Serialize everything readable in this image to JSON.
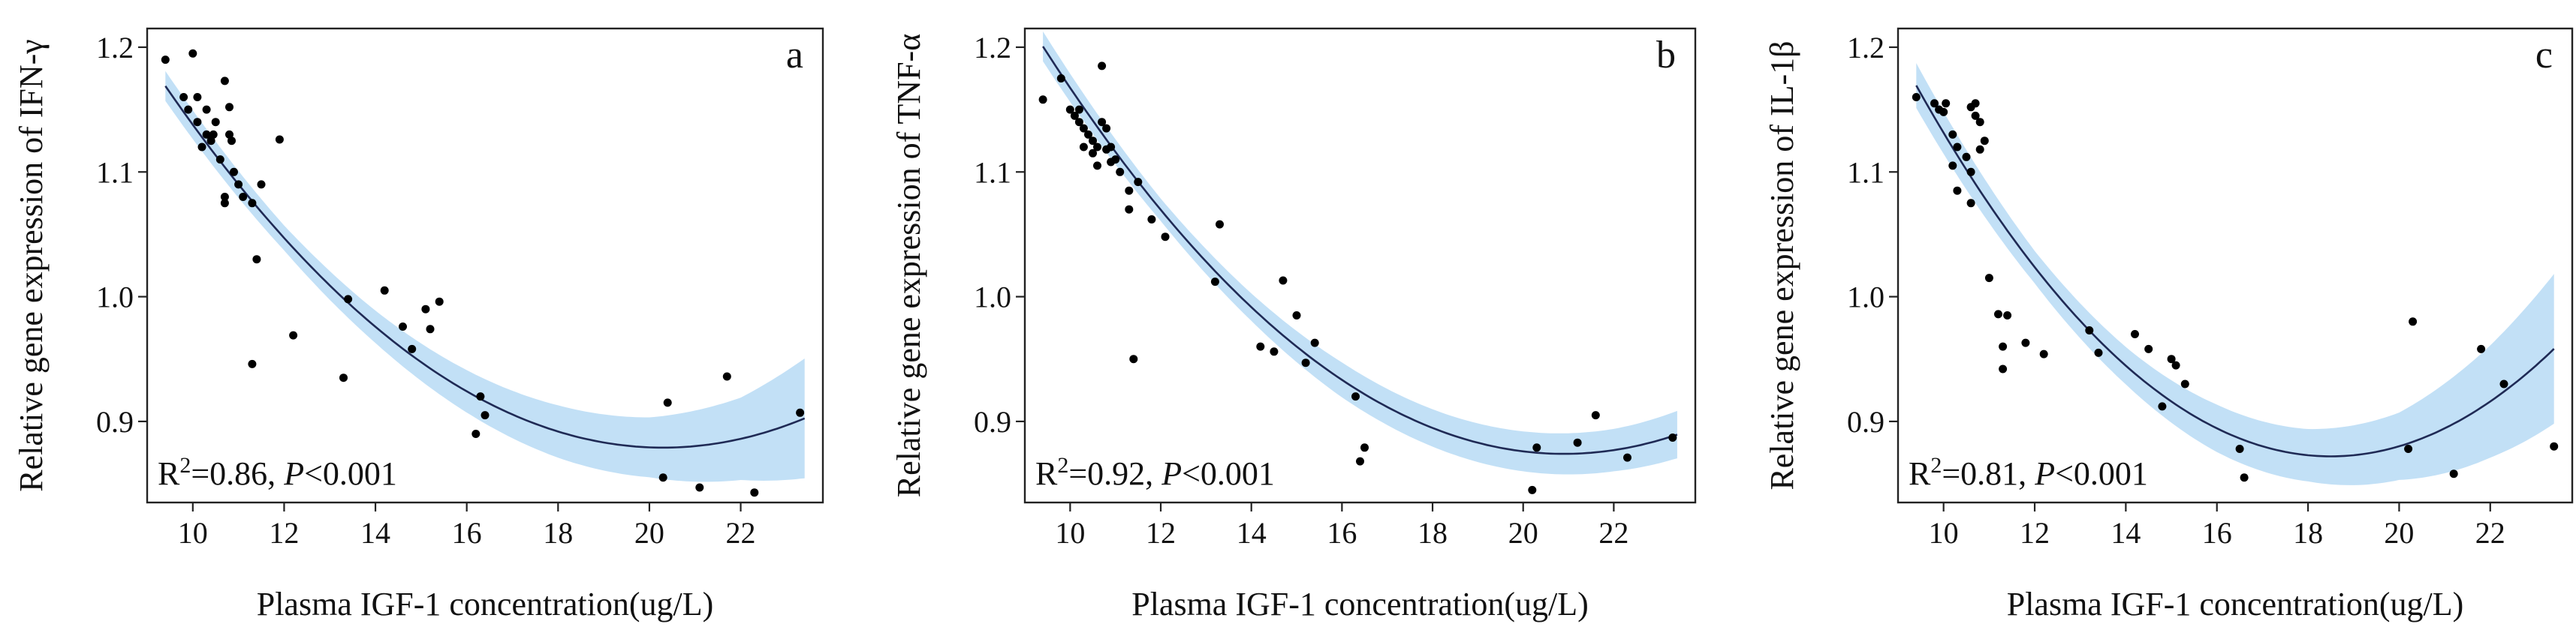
{
  "colors": {
    "band": "#b7dbf5",
    "line": "#1f2a55",
    "point": "#000000"
  },
  "chart_data": [
    {
      "type": "scatter",
      "panel_label": "a",
      "xlabel": "Plasma IGF-1 concentration(ug/L)",
      "ylabel": "Relative gene expression of IFN-γ",
      "xlim": [
        9,
        23.8
      ],
      "ylim": [
        0.835,
        1.215
      ],
      "xticks": [
        10,
        12,
        14,
        16,
        18,
        20,
        22
      ],
      "yticks": [
        0.9,
        1.0,
        1.1,
        1.2
      ],
      "xtick_labels": [
        "10",
        "12",
        "14",
        "16",
        "18",
        "20",
        "22"
      ],
      "ytick_labels": [
        "0.9",
        "1.0",
        "1.1",
        "1.2"
      ],
      "stat": {
        "r_prefix": "R",
        "r_sup": "2",
        "r_value": "=0.86, ",
        "p_italic": "P",
        "p_value": "<0.001"
      },
      "fit_quadratic": {
        "vertex_x": 20.3,
        "vertex_y": 0.879,
        "a": 0.00244
      },
      "band_halfwidth": [
        [
          9.4,
          0.012
        ],
        [
          12,
          0.01
        ],
        [
          14,
          0.013
        ],
        [
          16,
          0.017
        ],
        [
          18,
          0.021
        ],
        [
          20,
          0.024
        ],
        [
          22,
          0.033
        ],
        [
          23.4,
          0.048
        ]
      ],
      "fit_range": [
        9.4,
        23.4
      ],
      "points": [
        [
          9.4,
          1.19
        ],
        [
          9.8,
          1.16
        ],
        [
          10.0,
          1.195
        ],
        [
          9.9,
          1.15
        ],
        [
          10.1,
          1.16
        ],
        [
          10.1,
          1.14
        ],
        [
          10.2,
          1.12
        ],
        [
          10.3,
          1.15
        ],
        [
          10.3,
          1.13
        ],
        [
          10.4,
          1.125
        ],
        [
          10.45,
          1.13
        ],
        [
          10.5,
          1.14
        ],
        [
          10.6,
          1.11
        ],
        [
          10.7,
          1.173
        ],
        [
          10.8,
          1.152
        ],
        [
          10.8,
          1.13
        ],
        [
          10.85,
          1.125
        ],
        [
          10.7,
          1.08
        ],
        [
          10.7,
          1.075
        ],
        [
          10.9,
          1.1
        ],
        [
          11.0,
          1.09
        ],
        [
          11.1,
          1.08
        ],
        [
          11.3,
          1.075
        ],
        [
          11.5,
          1.09
        ],
        [
          11.9,
          1.126
        ],
        [
          11.4,
          1.03
        ],
        [
          11.3,
          0.946
        ],
        [
          12.2,
          0.969
        ],
        [
          13.4,
          0.998
        ],
        [
          13.3,
          0.935
        ],
        [
          14.2,
          1.005
        ],
        [
          14.6,
          0.976
        ],
        [
          14.8,
          0.958
        ],
        [
          15.1,
          0.99
        ],
        [
          15.2,
          0.974
        ],
        [
          15.4,
          0.996
        ],
        [
          16.3,
          0.92
        ],
        [
          16.4,
          0.905
        ],
        [
          16.2,
          0.89
        ],
        [
          20.4,
          0.915
        ],
        [
          20.3,
          0.855
        ],
        [
          21.1,
          0.847
        ],
        [
          21.7,
          0.936
        ],
        [
          22.3,
          0.843
        ],
        [
          23.3,
          0.907
        ]
      ]
    },
    {
      "type": "scatter",
      "panel_label": "b",
      "xlabel": "Plasma IGF-1 concentration(ug/L)",
      "ylabel": "Relative gene expression of TNF-α",
      "xlim": [
        9,
        23.8
      ],
      "ylim": [
        0.835,
        1.215
      ],
      "xticks": [
        10,
        12,
        14,
        16,
        18,
        20,
        22
      ],
      "yticks": [
        0.9,
        1.0,
        1.1,
        1.2
      ],
      "xtick_labels": [
        "10",
        "12",
        "14",
        "16",
        "18",
        "20",
        "22"
      ],
      "ytick_labels": [
        "0.9",
        "1.0",
        "1.1",
        "1.2"
      ],
      "stat": {
        "r_prefix": "R",
        "r_sup": "2",
        "r_value": "=0.92, ",
        "p_italic": "P",
        "p_value": "<0.001"
      },
      "fit_quadratic": {
        "vertex_x": 20.9,
        "vertex_y": 0.874,
        "a": 0.00247
      },
      "band_halfwidth": [
        [
          9.4,
          0.012
        ],
        [
          12,
          0.009
        ],
        [
          14,
          0.011
        ],
        [
          16,
          0.014
        ],
        [
          18,
          0.015
        ],
        [
          20,
          0.016
        ],
        [
          22,
          0.017
        ],
        [
          23.4,
          0.019
        ]
      ],
      "fit_range": [
        9.4,
        23.4
      ],
      "points": [
        [
          9.4,
          1.158
        ],
        [
          9.8,
          1.175
        ],
        [
          10.0,
          1.15
        ],
        [
          10.1,
          1.145
        ],
        [
          10.2,
          1.15
        ],
        [
          10.2,
          1.14
        ],
        [
          10.3,
          1.135
        ],
        [
          10.3,
          1.12
        ],
        [
          10.4,
          1.13
        ],
        [
          10.5,
          1.125
        ],
        [
          10.5,
          1.115
        ],
        [
          10.6,
          1.12
        ],
        [
          10.6,
          1.105
        ],
        [
          10.7,
          1.185
        ],
        [
          10.7,
          1.14
        ],
        [
          10.8,
          1.135
        ],
        [
          10.8,
          1.118
        ],
        [
          10.9,
          1.12
        ],
        [
          10.9,
          1.108
        ],
        [
          11.0,
          1.11
        ],
        [
          11.1,
          1.1
        ],
        [
          11.3,
          1.085
        ],
        [
          11.3,
          1.07
        ],
        [
          11.5,
          1.092
        ],
        [
          11.4,
          0.95
        ],
        [
          11.8,
          1.062
        ],
        [
          12.1,
          1.048
        ],
        [
          13.2,
          1.012
        ],
        [
          13.3,
          1.058
        ],
        [
          14.2,
          0.96
        ],
        [
          14.5,
          0.956
        ],
        [
          14.7,
          1.013
        ],
        [
          15.0,
          0.985
        ],
        [
          15.2,
          0.947
        ],
        [
          15.4,
          0.963
        ],
        [
          16.3,
          0.92
        ],
        [
          16.4,
          0.868
        ],
        [
          16.5,
          0.879
        ],
        [
          20.2,
          0.845
        ],
        [
          20.3,
          0.879
        ],
        [
          21.2,
          0.883
        ],
        [
          21.6,
          0.905
        ],
        [
          22.3,
          0.871
        ],
        [
          23.3,
          0.887
        ]
      ]
    },
    {
      "type": "scatter",
      "panel_label": "c",
      "xlabel": "Plasma IGF-1 concentration(ug/L)",
      "ylabel": "Relative gene expression of IL-1β",
      "xlim": [
        9,
        23.8
      ],
      "ylim": [
        0.835,
        1.215
      ],
      "xticks": [
        10,
        12,
        14,
        16,
        18,
        20,
        22
      ],
      "yticks": [
        0.9,
        1.0,
        1.1,
        1.2
      ],
      "xtick_labels": [
        "10",
        "12",
        "14",
        "16",
        "18",
        "20",
        "22"
      ],
      "ytick_labels": [
        "0.9",
        "1.0",
        "1.1",
        "1.2"
      ],
      "stat": {
        "r_prefix": "R",
        "r_sup": "2",
        "r_value": "=0.81, ",
        "p_italic": "P",
        "p_value": "<0.001"
      },
      "fit_quadratic": {
        "vertex_x": 18.5,
        "vertex_y": 0.872,
        "a": 0.00359
      },
      "band_halfwidth": [
        [
          9.4,
          0.018
        ],
        [
          12,
          0.013
        ],
        [
          14,
          0.015
        ],
        [
          16,
          0.019
        ],
        [
          18,
          0.021
        ],
        [
          20,
          0.027
        ],
        [
          22,
          0.045
        ],
        [
          23.4,
          0.06
        ]
      ],
      "fit_range": [
        9.4,
        23.4
      ],
      "points": [
        [
          9.4,
          1.16
        ],
        [
          9.8,
          1.155
        ],
        [
          9.9,
          1.15
        ],
        [
          10.0,
          1.148
        ],
        [
          10.05,
          1.155
        ],
        [
          10.2,
          1.13
        ],
        [
          10.2,
          1.105
        ],
        [
          10.3,
          1.12
        ],
        [
          10.3,
          1.085
        ],
        [
          10.5,
          1.112
        ],
        [
          10.6,
          1.1
        ],
        [
          10.6,
          1.075
        ],
        [
          10.7,
          1.155
        ],
        [
          10.7,
          1.145
        ],
        [
          10.8,
          1.14
        ],
        [
          10.8,
          1.118
        ],
        [
          10.9,
          1.125
        ],
        [
          10.6,
          1.152
        ],
        [
          11.0,
          1.015
        ],
        [
          11.2,
          0.986
        ],
        [
          11.3,
          0.96
        ],
        [
          11.3,
          0.942
        ],
        [
          11.4,
          0.985
        ],
        [
          11.8,
          0.963
        ],
        [
          12.2,
          0.954
        ],
        [
          13.2,
          0.973
        ],
        [
          13.4,
          0.955
        ],
        [
          14.2,
          0.97
        ],
        [
          14.5,
          0.958
        ],
        [
          14.8,
          0.912
        ],
        [
          15.0,
          0.95
        ],
        [
          15.1,
          0.945
        ],
        [
          15.3,
          0.93
        ],
        [
          16.5,
          0.878
        ],
        [
          16.6,
          0.855
        ],
        [
          20.2,
          0.878
        ],
        [
          20.3,
          0.98
        ],
        [
          21.2,
          0.858
        ],
        [
          21.8,
          0.958
        ],
        [
          22.3,
          0.93
        ],
        [
          23.4,
          0.88
        ]
      ]
    }
  ]
}
